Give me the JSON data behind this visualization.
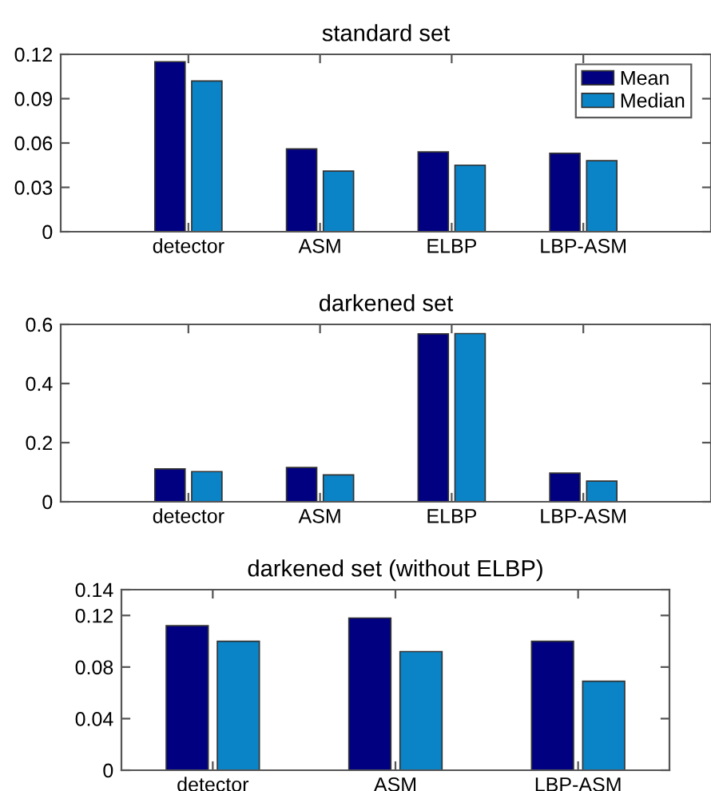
{
  "chart_data": [
    {
      "type": "bar",
      "title": "standard set",
      "categories": [
        "detector",
        "ASM",
        "ELBP",
        "LBP-ASM"
      ],
      "ylim": [
        0,
        0.12
      ],
      "yticks": [
        0,
        0.03,
        0.06,
        0.09,
        0.12
      ],
      "grid": false,
      "legend": "top right",
      "series": [
        {
          "name": "Mean",
          "color": "#000080",
          "values": [
            0.115,
            0.056,
            0.054,
            0.053
          ]
        },
        {
          "name": "Median",
          "color": "#0a84c6",
          "values": [
            0.102,
            0.041,
            0.045,
            0.048
          ]
        }
      ]
    },
    {
      "type": "bar",
      "title": "darkened set",
      "categories": [
        "detector",
        "ASM",
        "ELBP",
        "LBP-ASM"
      ],
      "ylim": [
        0,
        0.6
      ],
      "yticks": [
        0,
        0.2,
        0.4,
        0.6
      ],
      "grid": false,
      "series": [
        {
          "color": "#000080",
          "values": [
            0.111,
            0.116,
            0.568,
            0.097
          ]
        },
        {
          "color": "#0a84c6",
          "values": [
            0.102,
            0.091,
            0.569,
            0.07
          ]
        }
      ]
    },
    {
      "type": "bar",
      "title": "darkened set (without ELBP)",
      "categories": [
        "detector",
        "ASM",
        "LBP-ASM"
      ],
      "ylim": [
        0,
        0.14
      ],
      "yticks": [
        0,
        0.04,
        0.08,
        0.12,
        0.14
      ],
      "grid": false,
      "series": [
        {
          "color": "#000080",
          "values": [
            0.112,
            0.118,
            0.1
          ]
        },
        {
          "color": "#0a84c6",
          "values": [
            0.1,
            0.092,
            0.069
          ]
        }
      ]
    }
  ]
}
